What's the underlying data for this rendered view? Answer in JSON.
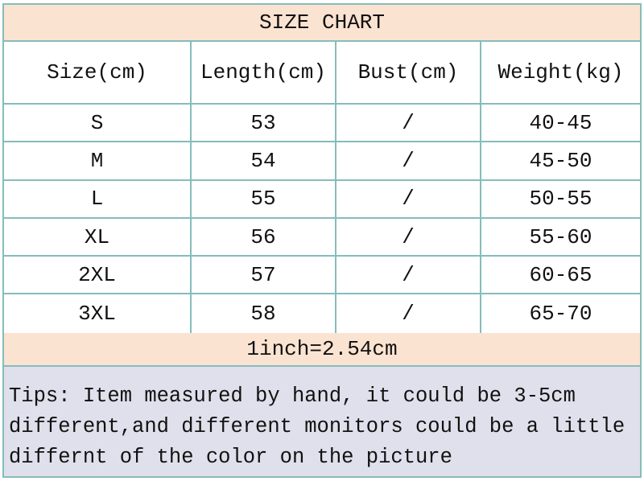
{
  "title": "SIZE CHART",
  "columns": [
    "Size(cm)",
    "Length(cm)",
    "Bust(cm)",
    "Weight(kg)"
  ],
  "rows": [
    [
      "S",
      "53",
      "/",
      "40-45"
    ],
    [
      "M",
      "54",
      "/",
      "45-50"
    ],
    [
      "L",
      "55",
      "/",
      "50-55"
    ],
    [
      "XL",
      "56",
      "/",
      "55-60"
    ],
    [
      "2XL",
      "57",
      "/",
      "60-65"
    ],
    [
      "3XL",
      "58",
      "/",
      "65-70"
    ]
  ],
  "conversion": "1inch=2.54cm",
  "tips": [
    "Tips: Item measured by hand, it could be 3-5cm",
    "different,and different monitors could be a little",
    "differnt of the color on the picture"
  ],
  "colors": {
    "border": "#86bcbc",
    "header_bg": "#fbe3d1",
    "tips_bg": "#e0e0ec"
  }
}
